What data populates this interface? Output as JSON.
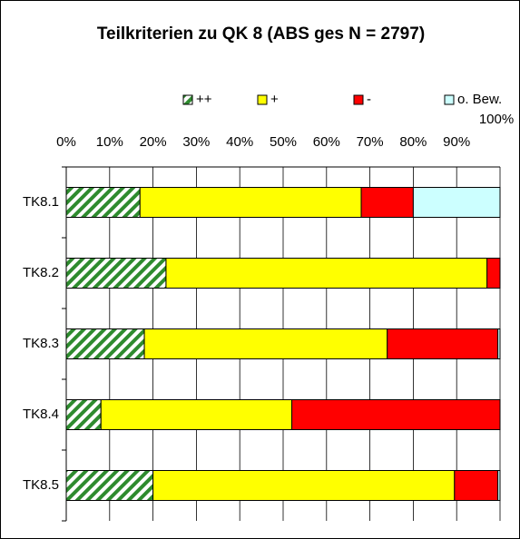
{
  "chart_data": {
    "type": "stacked_barh",
    "title": "Teilkriterien zu QK 8 (ABS ges N = 2797)",
    "categories": [
      "TK8.1",
      "TK8.2",
      "TK8.3",
      "TK8.4",
      "TK8.5"
    ],
    "series": [
      {
        "name": "++",
        "color": "#2e8b2e",
        "hatch": true,
        "values": [
          17,
          23,
          18,
          8,
          20
        ]
      },
      {
        "name": "+",
        "color": "#ffff00",
        "values": [
          51,
          74,
          56,
          44,
          69.5
        ]
      },
      {
        "name": "-",
        "color": "#ff0000",
        "values": [
          12,
          3,
          25.5,
          48,
          10
        ]
      },
      {
        "name": "o. Bew.",
        "color": "#ccffff",
        "values": [
          20,
          0,
          0.5,
          0,
          0.5
        ]
      }
    ],
    "xlim": [
      0,
      100
    ],
    "xticks": [
      {
        "value": 0,
        "label": "0%"
      },
      {
        "value": 10,
        "label": "10%"
      },
      {
        "value": 20,
        "label": "20%"
      },
      {
        "value": 30,
        "label": "30%"
      },
      {
        "value": 40,
        "label": "40%"
      },
      {
        "value": 50,
        "label": "50%"
      },
      {
        "value": 60,
        "label": "60%"
      },
      {
        "value": 70,
        "label": "70%"
      },
      {
        "value": 80,
        "label": "80%"
      },
      {
        "value": 90,
        "label": "90%"
      },
      {
        "value": 100,
        "label": "100%"
      }
    ],
    "grid": true,
    "legend": "top"
  }
}
